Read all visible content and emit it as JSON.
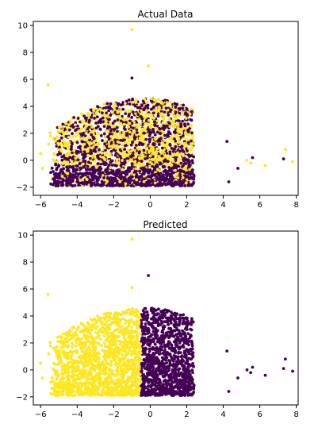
{
  "colors": {
    "class_0": "#440154",
    "class_1": "#fde725",
    "axes": "#000000",
    "background": "#ffffff"
  },
  "chart_data": [
    {
      "type": "scatter",
      "title": "Actual Data",
      "xlabel": "",
      "ylabel": "",
      "xlim": [
        -6.4,
        8.1
      ],
      "ylim": [
        -2.6,
        10.3
      ],
      "xticks": [
        -6,
        -4,
        -2,
        0,
        2,
        4,
        6,
        8
      ],
      "yticks": [
        -2,
        0,
        2,
        4,
        6,
        8,
        10
      ],
      "grid": false,
      "legend": "none",
      "color_rule": "mixed classes",
      "outliers": [
        {
          "x": -1.0,
          "y": 9.7,
          "class": 1
        },
        {
          "x": -0.1,
          "y": 7.0,
          "class": 1
        },
        {
          "x": -1.0,
          "y": 6.1,
          "class": 0
        },
        {
          "x": -5.6,
          "y": 5.6,
          "class": 1
        },
        {
          "x": 7.4,
          "y": 0.8,
          "class": 1
        },
        {
          "x": 7.8,
          "y": -0.1,
          "class": 1
        },
        {
          "x": 7.3,
          "y": 0.1,
          "class": 0
        },
        {
          "x": 6.3,
          "y": -0.4,
          "class": 1
        },
        {
          "x": 5.6,
          "y": 0.2,
          "class": 0
        },
        {
          "x": 5.5,
          "y": -0.2,
          "class": 1
        },
        {
          "x": 5.3,
          "y": 0.0,
          "class": 1
        },
        {
          "x": 4.8,
          "y": -0.6,
          "class": 0
        },
        {
          "x": 4.3,
          "y": -1.6,
          "class": 0
        },
        {
          "x": 4.2,
          "y": 1.4,
          "class": 0
        },
        {
          "x": -6.0,
          "y": 0.5,
          "class": 1
        },
        {
          "x": -5.9,
          "y": -0.6,
          "class": 1
        }
      ]
    },
    {
      "type": "scatter",
      "title": "Predicted",
      "xlabel": "",
      "ylabel": "",
      "xlim": [
        -6.4,
        8.1
      ],
      "ylim": [
        -2.6,
        10.3
      ],
      "xticks": [
        -6,
        -4,
        -2,
        0,
        2,
        4,
        6,
        8
      ],
      "yticks": [
        -2,
        0,
        2,
        4,
        6,
        8,
        10
      ],
      "grid": false,
      "legend": "none",
      "color_rule": "class 1 if x < -0.5 else class 0",
      "outliers": [
        {
          "x": -1.0,
          "y": 9.7,
          "class": 1
        },
        {
          "x": -0.1,
          "y": 7.0,
          "class": 0
        },
        {
          "x": -1.0,
          "y": 6.1,
          "class": 1
        },
        {
          "x": -5.6,
          "y": 5.6,
          "class": 1
        },
        {
          "x": 7.4,
          "y": 0.8,
          "class": 0
        },
        {
          "x": 7.8,
          "y": -0.1,
          "class": 0
        },
        {
          "x": 7.3,
          "y": 0.1,
          "class": 0
        },
        {
          "x": 6.3,
          "y": -0.4,
          "class": 0
        },
        {
          "x": 5.6,
          "y": 0.2,
          "class": 0
        },
        {
          "x": 5.5,
          "y": -0.2,
          "class": 0
        },
        {
          "x": 5.3,
          "y": 0.0,
          "class": 0
        },
        {
          "x": 4.8,
          "y": -0.6,
          "class": 0
        },
        {
          "x": 4.3,
          "y": -1.6,
          "class": 0
        },
        {
          "x": 4.2,
          "y": 1.4,
          "class": 0
        },
        {
          "x": -6.0,
          "y": 0.5,
          "class": 1
        },
        {
          "x": -5.9,
          "y": -0.6,
          "class": 1
        }
      ]
    }
  ]
}
